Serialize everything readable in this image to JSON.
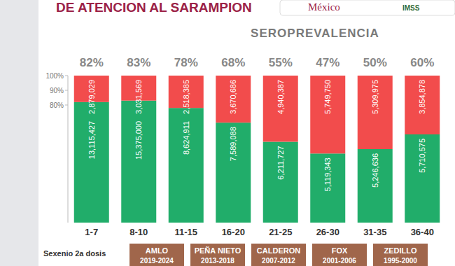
{
  "header": {
    "title": "DE ATENCION AL SARAMPION",
    "logo": "México",
    "logo2": "IMSS"
  },
  "chart_data": {
    "type": "bar",
    "stacked": true,
    "title": "SEROPREVALENCIA",
    "xlabel": "Sexenio 2a dosis",
    "categories": [
      "1-7",
      "8-10",
      "11-15",
      "16-20",
      "21-25",
      "26-30",
      "31-35",
      "36-40"
    ],
    "series": [
      {
        "color": "#21ad6a",
        "values": [
          82,
          83,
          78,
          68,
          55,
          47,
          50,
          60
        ],
        "value_labels": [
          "82%",
          "83%",
          "78%",
          "68%",
          "55%",
          "47%",
          "50%",
          "60%"
        ],
        "counts": [
          13115427,
          15375000,
          8624911,
          7589088,
          6211727,
          5119343,
          5246636,
          5710575
        ]
      },
      {
        "color": "#f24c4c",
        "values": [
          18,
          17,
          22,
          32,
          45,
          53,
          50,
          40
        ],
        "counts": [
          2879029,
          3031569,
          2518385,
          3670686,
          4940387,
          5749750,
          5309975,
          3854878
        ]
      }
    ],
    "ylim": [
      0,
      100
    ],
    "yticks": [
      {
        "value": 80,
        "label": "80%"
      },
      {
        "value": 90,
        "label": "90%"
      },
      {
        "value": 100,
        "label": "100%"
      }
    ],
    "grid": false,
    "data_labels": true,
    "annotations": [
      {
        "text": "AMLO",
        "subtext": "2019-2024"
      },
      {
        "text": "PEÑA NIETO",
        "subtext": "2013-2018"
      },
      {
        "text": "CALDERON",
        "subtext": "2007-2012"
      },
      {
        "text": "FOX",
        "subtext": "2001-2006"
      },
      {
        "text": "ZEDILLO",
        "subtext": "1995-2000"
      }
    ]
  }
}
